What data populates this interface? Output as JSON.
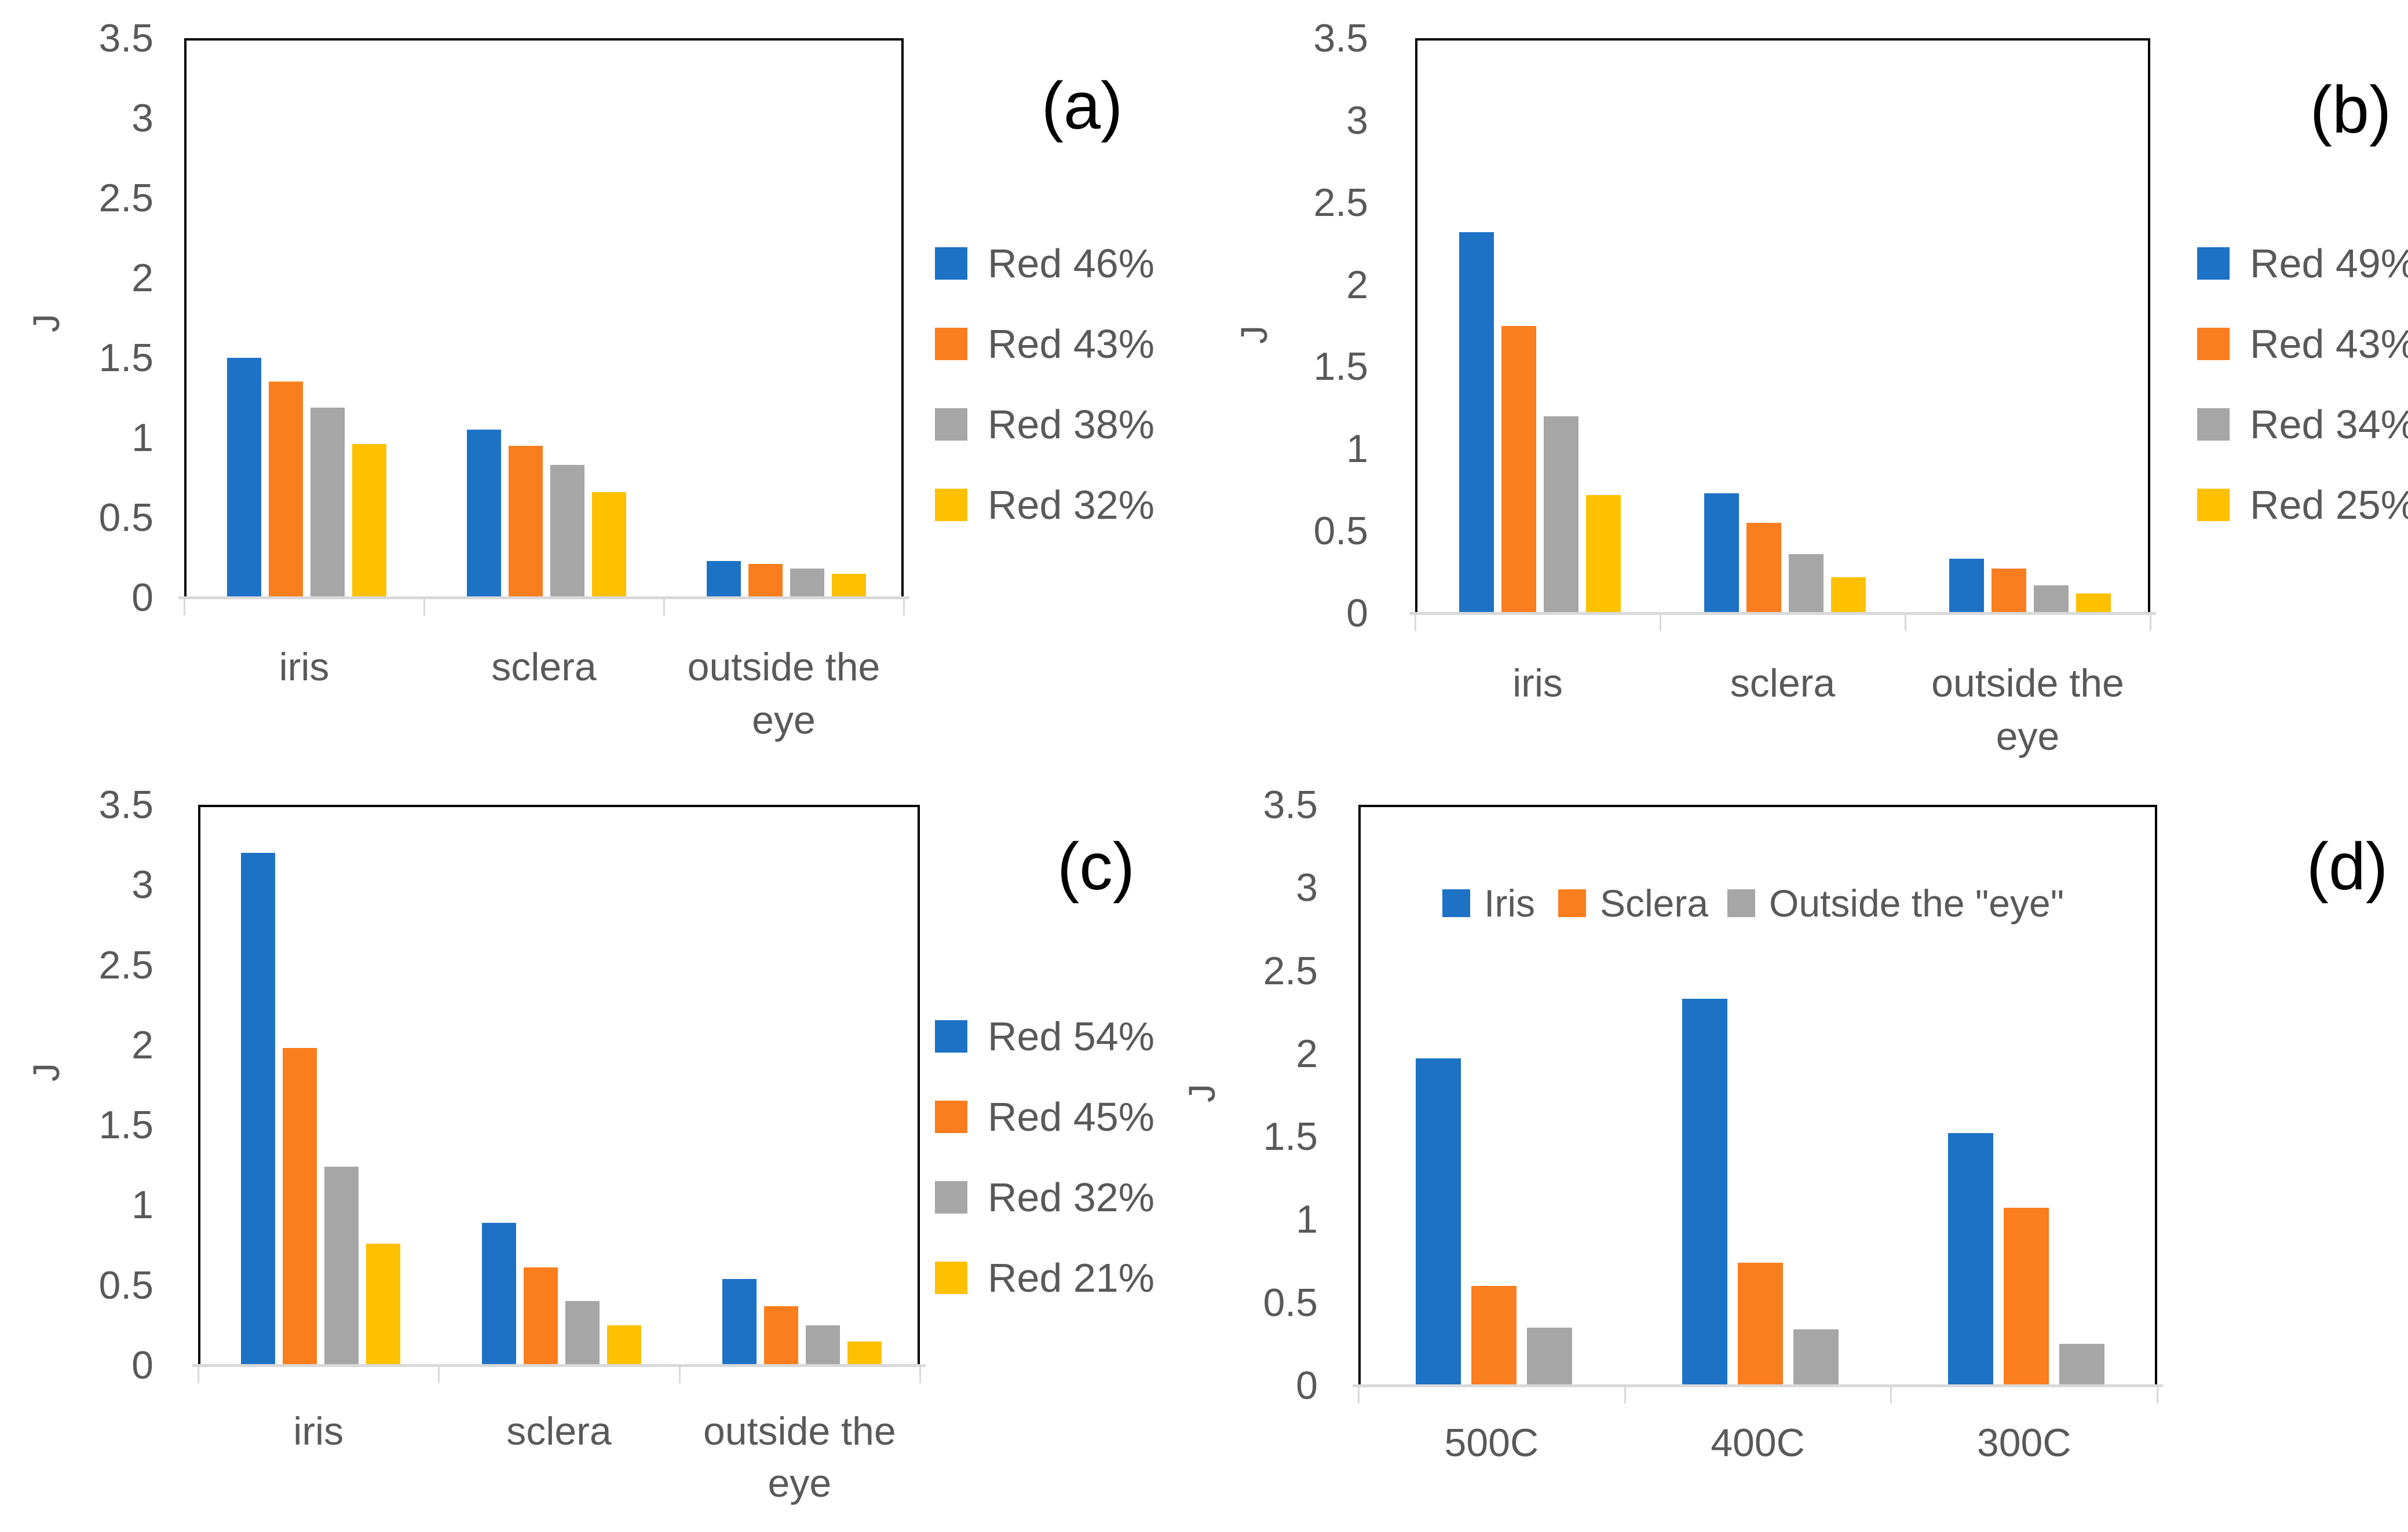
{
  "page": {
    "background": "#ffffff"
  },
  "palette": {
    "blue": "#1D72C6",
    "orange": "#FA7D1E",
    "gray": "#A6A6A6",
    "yellow": "#FFC000",
    "axis_line": "#D9D9D9",
    "tick_text": "#595959",
    "panel_text": "#000000"
  },
  "chart_data": [
    {
      "id": "a",
      "type": "bar",
      "panel_label": "(a)",
      "ylabel": "J",
      "ylim": [
        0,
        3.5
      ],
      "y_ticks": [
        "0",
        "0.5",
        "1",
        "1.5",
        "2",
        "2.5",
        "3",
        "3.5"
      ],
      "grid": false,
      "legend_position": "right",
      "categories": [
        "iris",
        "sclera",
        "outside the eye"
      ],
      "category_display": [
        [
          "iris"
        ],
        [
          "sclera"
        ],
        [
          "outside the",
          "eye"
        ]
      ],
      "series": [
        {
          "name": "Red 46%",
          "color_key": "blue",
          "values": [
            1.5,
            1.05,
            0.23
          ]
        },
        {
          "name": "Red 43%",
          "color_key": "orange",
          "values": [
            1.35,
            0.95,
            0.21
          ]
        },
        {
          "name": "Red 38%",
          "color_key": "gray",
          "values": [
            1.19,
            0.83,
            0.18
          ]
        },
        {
          "name": "Red 32%",
          "color_key": "yellow",
          "values": [
            0.96,
            0.66,
            0.15
          ]
        }
      ]
    },
    {
      "id": "b",
      "type": "bar",
      "panel_label": "(b)",
      "ylabel": "J",
      "ylim": [
        0,
        3.5
      ],
      "y_ticks": [
        "0",
        "0.5",
        "1",
        "1.5",
        "2",
        "2.5",
        "3",
        "3.5"
      ],
      "grid": false,
      "legend_position": "right",
      "categories": [
        "iris",
        "sclera",
        "outside the eye"
      ],
      "category_display": [
        [
          "iris"
        ],
        [
          "sclera"
        ],
        [
          "outside the",
          "eye"
        ]
      ],
      "series": [
        {
          "name": "Red 49%",
          "color_key": "blue",
          "values": [
            2.32,
            0.73,
            0.33
          ]
        },
        {
          "name": "Red 43%",
          "color_key": "orange",
          "values": [
            1.75,
            0.55,
            0.27
          ]
        },
        {
          "name": "Red 34%",
          "color_key": "gray",
          "values": [
            1.2,
            0.36,
            0.17
          ]
        },
        {
          "name": "Red 25%",
          "color_key": "yellow",
          "values": [
            0.72,
            0.22,
            0.12
          ]
        }
      ]
    },
    {
      "id": "c",
      "type": "bar",
      "panel_label": "(c)",
      "ylabel": "J",
      "ylim": [
        0,
        3.5
      ],
      "y_ticks": [
        "0",
        "0.5",
        "1",
        "1.5",
        "2",
        "2.5",
        "3",
        "3.5"
      ],
      "grid": false,
      "legend_position": "right",
      "categories": [
        "iris",
        "sclera",
        "outside the eye"
      ],
      "category_display": [
        [
          "iris"
        ],
        [
          "sclera"
        ],
        [
          "outside the",
          "eye"
        ]
      ],
      "series": [
        {
          "name": "Red 54%",
          "color_key": "blue",
          "values": [
            3.2,
            0.89,
            0.54
          ]
        },
        {
          "name": "Red 45%",
          "color_key": "orange",
          "values": [
            1.98,
            0.61,
            0.37
          ]
        },
        {
          "name": "Red 32%",
          "color_key": "gray",
          "values": [
            1.24,
            0.4,
            0.25
          ]
        },
        {
          "name": "Red 21%",
          "color_key": "yellow",
          "values": [
            0.76,
            0.25,
            0.15
          ]
        }
      ]
    },
    {
      "id": "d",
      "type": "bar",
      "panel_label": "(d)",
      "ylabel": "J",
      "ylim": [
        0,
        3.5
      ],
      "y_ticks": [
        "0",
        "0.5",
        "1",
        "1.5",
        "2",
        "2.5",
        "3",
        "3.5"
      ],
      "grid": false,
      "legend_position": "inside-top",
      "categories": [
        "500C",
        "400C",
        "300C"
      ],
      "category_display": [
        [
          "500C"
        ],
        [
          "400C"
        ],
        [
          "300C"
        ]
      ],
      "series": [
        {
          "name": "Iris",
          "color_key": "blue",
          "values": [
            1.97,
            2.33,
            1.52
          ]
        },
        {
          "name": "Sclera",
          "color_key": "orange",
          "values": [
            0.6,
            0.74,
            1.07
          ]
        },
        {
          "name": "Outside the \"eye\"",
          "color_key": "gray",
          "values": [
            0.35,
            0.34,
            0.25
          ]
        }
      ]
    }
  ]
}
